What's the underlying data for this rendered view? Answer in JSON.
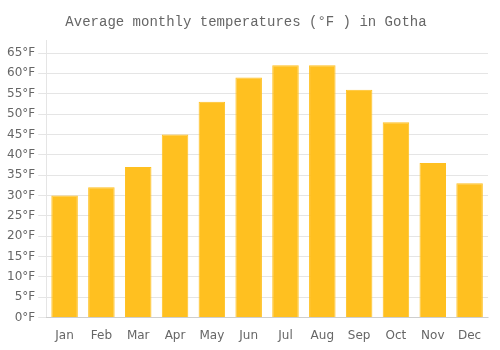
{
  "chart_data": {
    "type": "bar",
    "title": "Average monthly temperatures (°F ) in Gotha",
    "categories": [
      "Jan",
      "Feb",
      "Mar",
      "Apr",
      "May",
      "Jun",
      "Jul",
      "Aug",
      "Sep",
      "Oct",
      "Nov",
      "Dec"
    ],
    "values": [
      30,
      32,
      37,
      45,
      53,
      59,
      62,
      62,
      56,
      48,
      38,
      33
    ],
    "color": "#FFC020",
    "ylim": [
      0,
      68
    ],
    "yticks": [
      {
        "value": 0,
        "label": "0°F"
      },
      {
        "value": 5,
        "label": "5°F"
      },
      {
        "value": 10,
        "label": "10°F"
      },
      {
        "value": 15,
        "label": "15°F"
      },
      {
        "value": 20,
        "label": "20°F"
      },
      {
        "value": 25,
        "label": "25°F"
      },
      {
        "value": 30,
        "label": "30°F"
      },
      {
        "value": 35,
        "label": "35°F"
      },
      {
        "value": 40,
        "label": "40°F"
      },
      {
        "value": 45,
        "label": "45°F"
      },
      {
        "value": 50,
        "label": "50°F"
      },
      {
        "value": 55,
        "label": "55°F"
      },
      {
        "value": 60,
        "label": "60°F"
      },
      {
        "value": 65,
        "label": "65°F"
      }
    ],
    "grid": true
  }
}
